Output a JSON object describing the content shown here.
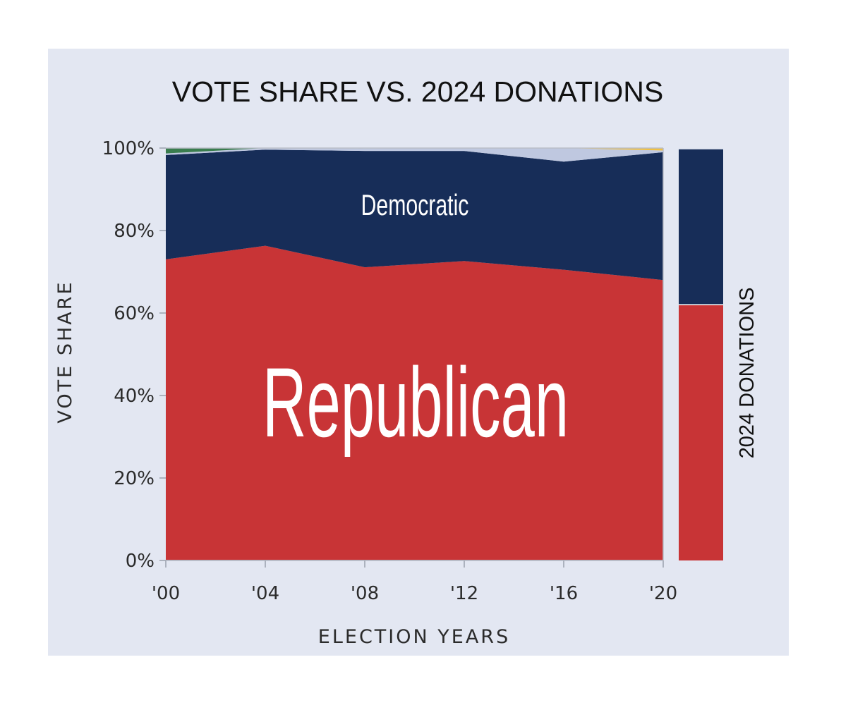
{
  "chart_data": {
    "type": "area",
    "title": "VOTE SHARE VS. 2024 DONATIONS",
    "xlabel": "ELECTION YEARS",
    "ylabel": "VOTE SHARE",
    "side_label": "2024 DONATIONS",
    "x": [
      "'00",
      "'04",
      "'08",
      "'12",
      "'16",
      "'20"
    ],
    "ylim": [
      0,
      100
    ],
    "y_ticks": [
      "0%",
      "20%",
      "40%",
      "60%",
      "80%",
      "100%"
    ],
    "stacked": true,
    "series": [
      {
        "name": "Republican",
        "color": "#c83436",
        "values": [
          73,
          76.3,
          71.1,
          72.6,
          70.5,
          68
        ]
      },
      {
        "name": "Democratic",
        "color": "#172d58",
        "values": [
          25.3,
          23.3,
          28.2,
          26.7,
          26.2,
          31
        ]
      },
      {
        "color": "#bfc8e0",
        "values": [
          0.4,
          0.4,
          0.6,
          0.7,
          3.3,
          0.4
        ]
      },
      {
        "color": "#3a7d4f",
        "values": [
          1.3,
          0,
          0,
          0,
          0,
          0
        ]
      },
      {
        "color": "#f1c142",
        "values": [
          0,
          0,
          0,
          0,
          0,
          0.6
        ]
      }
    ],
    "donations_2024": [
      {
        "name": "Republican",
        "color": "#c83436",
        "value": 62
      },
      {
        "name": "Democratic",
        "color": "#172d58",
        "value": 37.7
      }
    ],
    "grid": false,
    "legend": "none"
  }
}
